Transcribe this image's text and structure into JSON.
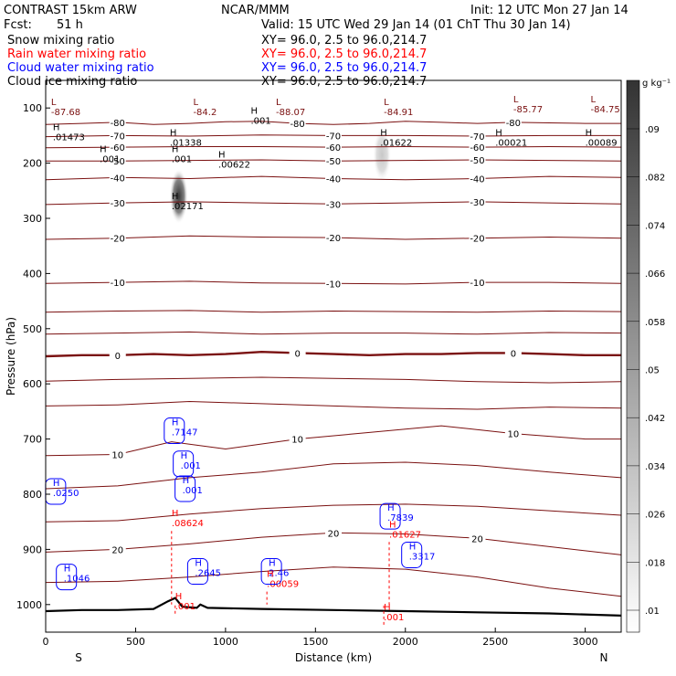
{
  "header": {
    "title": "CONTRAST 15km ARW",
    "center": "NCAR/MMM",
    "init": "Init: 12 UTC Mon 27 Jan 14",
    "fcst_label": "Fcst:",
    "fcst_value": "51 h",
    "valid": "Valid: 15 UTC Wed 29 Jan 14 (01 ChT Thu 30 Jan 14)"
  },
  "fields": [
    {
      "name": "Snow mixing ratio",
      "xy": "XY=  96.0,  2.5 to  96.0,214.7",
      "color": "#000000"
    },
    {
      "name": "Rain water mixing ratio",
      "xy": "XY=  96.0,  2.5 to  96.0,214.7",
      "color": "#ff0000"
    },
    {
      "name": "Cloud water mixing ratio",
      "xy": "XY=  96.0,  2.5 to  96.0,214.7",
      "color": "#0000ff"
    },
    {
      "name": "Cloud ice mixing ratio",
      "xy": "XY=  96.0,  2.5 to  96.0,214.7",
      "color": "#000000"
    }
  ],
  "colorbar": {
    "unit_label": "g kg⁻¹",
    "ticks": [
      ".01",
      ".018",
      ".026",
      ".034",
      ".042",
      ".05",
      ".058",
      ".066",
      ".074",
      ".082",
      ".09"
    ]
  },
  "chart_data": {
    "type": "contour",
    "xlabel": "Distance (km)",
    "ylabel": "Pressure (hPa)",
    "xlim": [
      0,
      3200
    ],
    "ylim": [
      1050,
      50
    ],
    "x_ticks": [
      0,
      500,
      1000,
      1500,
      2000,
      2500,
      3000
    ],
    "y_ticks": [
      100,
      200,
      300,
      400,
      500,
      600,
      700,
      800,
      900,
      1000
    ],
    "x_end_labels": {
      "left": "S",
      "right": "N"
    },
    "colors": {
      "temperature": "#7a1010",
      "zero_isotherm": "#7a1010",
      "cloud_water": "#0000ff",
      "rain": "#ff0000",
      "ice": "#000000",
      "terrain": "#000000"
    },
    "temperature_contours": [
      {
        "label": "-80",
        "x": [
          0,
          200,
          400,
          600,
          800,
          1000,
          1200,
          1400,
          1600,
          1800,
          2000,
          2200,
          2400,
          2600,
          2800,
          3000,
          3200
        ],
        "p": [
          130,
          128,
          126,
          130,
          128,
          125,
          124,
          128,
          130,
          128,
          124,
          126,
          128,
          126,
          127,
          128,
          128
        ]
      },
      {
        "label": "-70",
        "x": [
          0,
          400,
          800,
          1200,
          1600,
          2000,
          2400,
          2800,
          3200
        ],
        "p": [
          152,
          150,
          151,
          149,
          150,
          150,
          151,
          150,
          150
        ]
      },
      {
        "label": "-60",
        "x": [
          0,
          400,
          800,
          1200,
          1600,
          2000,
          2400,
          2800,
          3200
        ],
        "p": [
          172,
          171,
          170,
          170,
          171,
          170,
          171,
          170,
          171
        ]
      },
      {
        "label": "-50",
        "x": [
          0,
          400,
          800,
          1200,
          1600,
          2000,
          2400,
          2800,
          3200
        ],
        "p": [
          196,
          196,
          195,
          194,
          196,
          195,
          194,
          195,
          196
        ]
      },
      {
        "label": "-40",
        "x": [
          0,
          400,
          800,
          1200,
          1600,
          2000,
          2400,
          2800,
          3200
        ],
        "p": [
          230,
          226,
          228,
          224,
          228,
          230,
          228,
          224,
          226
        ]
      },
      {
        "label": "-30",
        "x": [
          0,
          400,
          800,
          1200,
          1600,
          2000,
          2400,
          2800,
          3200
        ],
        "p": [
          275,
          272,
          270,
          272,
          274,
          272,
          270,
          272,
          274
        ]
      },
      {
        "label": "-20",
        "x": [
          0,
          400,
          800,
          1200,
          1600,
          2000,
          2400,
          2800,
          3200
        ],
        "p": [
          338,
          336,
          332,
          334,
          335,
          338,
          336,
          334,
          336
        ]
      },
      {
        "label": "-10",
        "x": [
          0,
          400,
          800,
          1200,
          1600,
          2000,
          2400,
          2800,
          3200
        ],
        "p": [
          418,
          416,
          414,
          417,
          418,
          419,
          416,
          416,
          418
        ]
      },
      {
        "label": "",
        "x": [
          0,
          400,
          800,
          1200,
          1600,
          2000,
          2400,
          2800,
          3200
        ],
        "p": [
          470,
          468,
          467,
          470,
          468,
          469,
          470,
          468,
          469
        ]
      },
      {
        "label": "",
        "x": [
          0,
          400,
          800,
          1200,
          1600,
          2000,
          2400,
          2800,
          3200
        ],
        "p": [
          510,
          508,
          506,
          510,
          508,
          508,
          510,
          507,
          508
        ]
      },
      {
        "label": "0",
        "x": [
          0,
          200,
          400,
          600,
          800,
          1000,
          1200,
          1400,
          1600,
          1800,
          2000,
          2200,
          2400,
          2600,
          2800,
          3000,
          3200
        ],
        "p": [
          550,
          548,
          548,
          546,
          548,
          546,
          542,
          544,
          546,
          548,
          546,
          546,
          544,
          544,
          546,
          548,
          548
        ]
      },
      {
        "label": "",
        "x": [
          0,
          400,
          800,
          1200,
          1600,
          2000,
          2400,
          2800,
          3200
        ],
        "p": [
          595,
          592,
          590,
          588,
          590,
          592,
          596,
          598,
          596
        ]
      },
      {
        "label": "",
        "x": [
          0,
          400,
          800,
          1200,
          1600,
          2000,
          2400,
          2800,
          3200
        ],
        "p": [
          640,
          638,
          632,
          636,
          640,
          644,
          646,
          642,
          644
        ]
      },
      {
        "label": "10",
        "x": [
          0,
          400,
          700,
          1000,
          1400,
          1800,
          2200,
          2600,
          3000,
          3200
        ],
        "p": [
          730,
          728,
          705,
          718,
          700,
          688,
          676,
          690,
          700,
          700
        ]
      },
      {
        "label": "",
        "x": [
          0,
          400,
          800,
          1200,
          1600,
          2000,
          2400,
          2800,
          3200
        ],
        "p": [
          790,
          785,
          770,
          760,
          745,
          742,
          748,
          760,
          770
        ]
      },
      {
        "label": "",
        "x": [
          0,
          400,
          800,
          1200,
          1600,
          2000,
          2400,
          2800,
          3200
        ],
        "p": [
          850,
          848,
          836,
          826,
          820,
          818,
          822,
          830,
          838
        ]
      },
      {
        "label": "20",
        "x": [
          0,
          400,
          800,
          1200,
          1600,
          2000,
          2400,
          2800,
          3200
        ],
        "p": [
          905,
          900,
          890,
          878,
          870,
          872,
          880,
          895,
          910
        ]
      },
      {
        "label": "",
        "x": [
          0,
          400,
          800,
          1200,
          1600,
          2000,
          2400,
          2800,
          3200
        ],
        "p": [
          960,
          958,
          950,
          940,
          932,
          936,
          950,
          970,
          985
        ]
      }
    ],
    "terrain": {
      "x": [
        0,
        200,
        400,
        600,
        680,
        720,
        760,
        840,
        860,
        900,
        1200,
        1600,
        2000,
        2400,
        2800,
        3200
      ],
      "p": [
        1012,
        1010,
        1010,
        1008,
        994,
        988,
        1004,
        1006,
        1000,
        1006,
        1008,
        1010,
        1012,
        1014,
        1016,
        1020
      ]
    },
    "cloud_water_maxima": [
      {
        "label": ".0250",
        "x": 40,
        "p": 795
      },
      {
        "label": ".7147",
        "x": 700,
        "p": 685
      },
      {
        "label": ".001",
        "x": 750,
        "p": 745
      },
      {
        "label": ".001",
        "x": 760,
        "p": 790
      },
      {
        "label": ".1046",
        "x": 100,
        "p": 950
      },
      {
        "label": ".2645",
        "x": 830,
        "p": 940
      },
      {
        "label": "2.46",
        "x": 1240,
        "p": 940
      },
      {
        "label": ".7839",
        "x": 1900,
        "p": 840
      },
      {
        "label": ".3317",
        "x": 2020,
        "p": 910
      }
    ],
    "rain_maxima": [
      {
        "label": ".08624",
        "x": 700,
        "p": 850
      },
      {
        "label": ".00059",
        "x": 1230,
        "p": 960
      },
      {
        "label": ".01627",
        "x": 1910,
        "p": 870
      },
      {
        "label": ".001",
        "x": 720,
        "p": 1000
      },
      {
        "label": ".001",
        "x": 1880,
        "p": 1020
      }
    ],
    "ice_maxima": [
      {
        "label": ".01473",
        "x": 40,
        "p": 150
      },
      {
        "label": ".01338",
        "x": 690,
        "p": 160
      },
      {
        "label": ".001",
        "x": 700,
        "p": 190
      },
      {
        "label": ".02171",
        "x": 700,
        "p": 275
      },
      {
        "label": ".00622",
        "x": 960,
        "p": 200
      },
      {
        "label": ".01622",
        "x": 1860,
        "p": 160
      },
      {
        "label": ".00021",
        "x": 2500,
        "p": 160
      },
      {
        "label": ".00089",
        "x": 3000,
        "p": 160
      },
      {
        "label": ".001",
        "x": 300,
        "p": 190
      },
      {
        "label": ".001",
        "x": 1140,
        "p": 120
      }
    ],
    "pressure_minima": [
      {
        "label": "-87.68",
        "x": 30,
        "p": 105
      },
      {
        "label": "-84.2",
        "x": 820,
        "p": 105
      },
      {
        "label": "-88.07",
        "x": 1280,
        "p": 105
      },
      {
        "label": "-84.91",
        "x": 1880,
        "p": 105
      },
      {
        "label": "-85.77",
        "x": 2600,
        "p": 100
      },
      {
        "label": "-84.75",
        "x": 3030,
        "p": 100
      }
    ],
    "snow_maxima": [
      {
        "x": 740,
        "p": 260,
        "strength": 0.9
      },
      {
        "x": 1870,
        "p": 185,
        "strength": 0.25
      }
    ]
  }
}
